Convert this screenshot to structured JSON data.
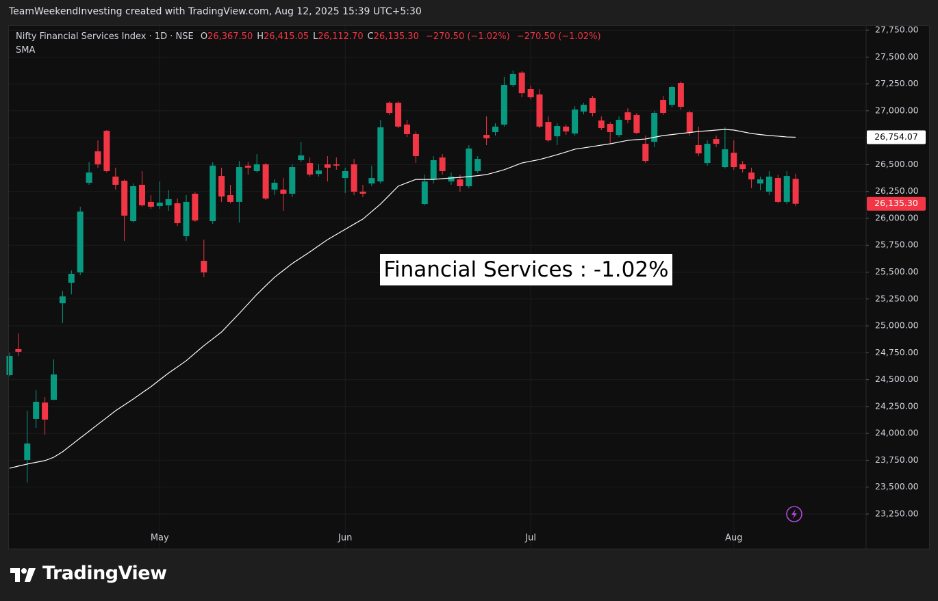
{
  "chart_data": {
    "type": "candlestick",
    "header": "TeamWeekendInvesting created with TradingView.com, Aug 12, 2025 15:39 UTC+5:30",
    "title": "Nifty Financial Services Index · 1D · NSE",
    "ohlc_legend": [
      {
        "key": "O",
        "value": "26,367.50"
      },
      {
        "key": "H",
        "value": "26,415.05"
      },
      {
        "key": "L",
        "value": "26,112.70"
      },
      {
        "key": "C",
        "value": "26,135.30"
      }
    ],
    "change_labels": [
      "−270.50 (−1.02%)",
      "−270.50 (−1.02%)"
    ],
    "annotation": "Financial Services : -1.02%",
    "footer_logo": "TradingView",
    "categories": [
      null,
      null,
      null,
      null,
      null,
      null,
      null,
      null,
      null,
      null,
      null,
      null,
      null,
      null,
      null,
      null,
      null,
      "May",
      null,
      null,
      null,
      null,
      null,
      null,
      null,
      null,
      null,
      null,
      null,
      null,
      null,
      null,
      null,
      null,
      null,
      null,
      null,
      null,
      "Jun",
      null,
      null,
      null,
      null,
      null,
      null,
      null,
      null,
      null,
      null,
      null,
      null,
      null,
      null,
      null,
      null,
      null,
      null,
      null,
      null,
      "Jul",
      null,
      null,
      null,
      null,
      null,
      null,
      null,
      null,
      null,
      null,
      null,
      null,
      null,
      null,
      null,
      null,
      null,
      null,
      null,
      null,
      null,
      null,
      "Aug",
      null,
      null,
      null,
      null,
      null,
      null,
      null
    ],
    "series": [
      {
        "up_color": "#089981",
        "down_color": "#f23645",
        "last_label": "26,135.30",
        "open": [
          24542,
          24784,
          23753,
          24135,
          24287,
          24313,
          25210,
          25401,
          25497,
          26331,
          26623,
          26814,
          26388,
          26350,
          25974,
          26312,
          26153,
          26114,
          26121,
          26140,
          25834,
          26229,
          25605,
          25974,
          26394,
          26216,
          26153,
          26490,
          26439,
          26502,
          26267,
          26267,
          26229,
          26541,
          26515,
          26413,
          26502,
          26502,
          26375,
          26502,
          26248,
          26324,
          26343,
          27075,
          27075,
          26872,
          26783,
          26133,
          26362,
          26566,
          26343,
          26362,
          26299,
          26439,
          26776,
          26802,
          26872,
          27241,
          27355,
          27203,
          27152,
          26897,
          26763,
          26853,
          26789,
          26993,
          27120,
          26910,
          26878,
          26776,
          26986,
          26961,
          26693,
          26712,
          27101,
          27056,
          27260,
          26986,
          26681,
          26515,
          26738,
          26477,
          26610,
          26502,
          26426,
          26324,
          26248,
          26375,
          26153,
          26367.5
        ],
        "high": [
          24752,
          24930,
          24211,
          24402,
          24338,
          24688,
          25325,
          25516,
          26108,
          26522,
          26725,
          26821,
          26471,
          26362,
          26324,
          26439,
          26216,
          26343,
          26261,
          26184,
          26216,
          26242,
          25802,
          26522,
          26471,
          26312,
          26534,
          26522,
          26598,
          26515,
          26362,
          26375,
          26502,
          26712,
          26566,
          26502,
          26579,
          26566,
          26471,
          26553,
          26312,
          26490,
          26916,
          27088,
          27088,
          26916,
          26808,
          26407,
          26579,
          26598,
          26426,
          26407,
          26681,
          26579,
          26948,
          26884,
          27317,
          27375,
          27368,
          27234,
          27203,
          26948,
          26884,
          26872,
          27043,
          27075,
          27139,
          26948,
          26897,
          26948,
          27024,
          26980,
          26770,
          26999,
          27139,
          27234,
          27273,
          26999,
          26853,
          26725,
          26770,
          26846,
          26725,
          26534,
          26471,
          26388,
          26439,
          26407,
          26439,
          26415.05
        ],
        "low": [
          24529,
          24720,
          23543,
          24052,
          23988,
          24307,
          25026,
          25293,
          25471,
          26312,
          26471,
          26426,
          26267,
          25790,
          25961,
          26108,
          26089,
          26089,
          26070,
          25930,
          25790,
          25968,
          25452,
          25949,
          26153,
          26140,
          25961,
          26407,
          26426,
          26172,
          26216,
          26070,
          26197,
          26522,
          26388,
          26388,
          26343,
          26452,
          26235,
          26216,
          26197,
          26299,
          26324,
          26961,
          26840,
          26757,
          26515,
          26121,
          26324,
          26407,
          26312,
          26248,
          26280,
          26420,
          26681,
          26770,
          26853,
          27222,
          27126,
          27107,
          26840,
          26712,
          26681,
          26776,
          26770,
          26967,
          26948,
          26821,
          26693,
          26757,
          26884,
          26783,
          26515,
          26662,
          26961,
          27031,
          27012,
          26770,
          26579,
          26490,
          26662,
          26464,
          26452,
          26426,
          26280,
          26261,
          26216,
          26140,
          26133,
          26112.7
        ],
        "close": [
          24720,
          24759,
          23906,
          24294,
          24128,
          24548,
          25274,
          25484,
          26063,
          26426,
          26502,
          26439,
          26312,
          26025,
          26299,
          26121,
          26108,
          26146,
          26178,
          25955,
          26153,
          25980,
          25497,
          26490,
          26203,
          26153,
          26477,
          26471,
          26502,
          26184,
          26331,
          26229,
          26477,
          26585,
          26407,
          26445,
          26471,
          26490,
          26439,
          26248,
          26229,
          26375,
          26846,
          26980,
          26853,
          26783,
          26579,
          26343,
          26541,
          26439,
          26388,
          26299,
          26649,
          26553,
          26744,
          26853,
          27241,
          27343,
          27164,
          27126,
          26853,
          26725,
          26859,
          26808,
          27012,
          27056,
          26980,
          26840,
          26802,
          26916,
          26916,
          26795,
          26534,
          26980,
          26980,
          27222,
          27037,
          26802,
          26604,
          26693,
          26693,
          26642,
          26477,
          26458,
          26362,
          26362,
          26388,
          26153,
          26394,
          26135.3
        ]
      },
      {
        "name": "SMA",
        "type": "line",
        "color": "#ffffff",
        "last_label": "26,754.07",
        "values": [
          23676,
          23696,
          23715,
          23731,
          23747,
          23778,
          23829,
          23893,
          23957,
          24020,
          24084,
          24147,
          24211,
          24265,
          24319,
          24377,
          24434,
          24498,
          24561,
          24618,
          24676,
          24746,
          24816,
          24879,
          24943,
          25029,
          25115,
          25204,
          25293,
          25373,
          25452,
          25516,
          25580,
          25634,
          25688,
          25745,
          25802,
          25850,
          25898,
          25946,
          25993,
          26063,
          26133,
          26216,
          26299,
          26331,
          26362,
          26362,
          26362,
          26369,
          26375,
          26381,
          26388,
          26397,
          26407,
          26429,
          26452,
          26483,
          26515,
          26531,
          26547,
          26569,
          26592,
          26617,
          26643,
          26655,
          26668,
          26681,
          26693,
          26709,
          26725,
          26732,
          26738,
          26754,
          26770,
          26779,
          26789,
          26798,
          26808,
          26814,
          26821,
          26827,
          26821,
          26805,
          26789,
          26779,
          26770,
          26764,
          26757,
          26754.07
        ]
      }
    ],
    "ylim": [
      22925,
      27795
    ],
    "yticks": [
      {
        "value": 23250,
        "label": "23,250.00"
      },
      {
        "value": 23500,
        "label": "23,500.00"
      },
      {
        "value": 23750,
        "label": "23,750.00"
      },
      {
        "value": 24000,
        "label": "24,000.00"
      },
      {
        "value": 24250,
        "label": "24,250.00"
      },
      {
        "value": 24500,
        "label": "24,500.00"
      },
      {
        "value": 24750,
        "label": "24,750.00"
      },
      {
        "value": 25000,
        "label": "25,000.00"
      },
      {
        "value": 25250,
        "label": "25,250.00"
      },
      {
        "value": 25500,
        "label": "25,500.00"
      },
      {
        "value": 25750,
        "label": "25,750.00"
      },
      {
        "value": 26000,
        "label": "26,000.00"
      },
      {
        "value": 26250,
        "label": "26,250.00"
      },
      {
        "value": 26500,
        "label": "26,500.00"
      },
      {
        "value": 26750,
        "label": "26,750.00"
      },
      {
        "value": 27000,
        "label": "27,000.00"
      },
      {
        "value": 27250,
        "label": "27,250.00"
      },
      {
        "value": 27500,
        "label": "27,500.00"
      },
      {
        "value": 27750,
        "label": "27,750.00"
      }
    ],
    "grid": true
  }
}
